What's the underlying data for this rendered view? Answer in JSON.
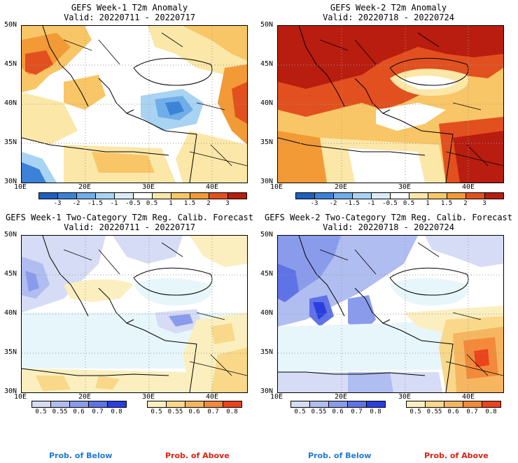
{
  "panels": [
    {
      "id": "w1-anom",
      "title": "GEFS Week-1 T2m Anomaly",
      "valid": "Valid: 20220711 - 20220717",
      "type": "anomaly",
      "lon_labels": [
        "10E",
        "20E",
        "30E",
        "40E"
      ],
      "lat_labels": [
        "50N",
        "45N",
        "40N",
        "35N",
        "30N"
      ]
    },
    {
      "id": "w2-anom",
      "title": "GEFS Week-2 T2m Anomaly",
      "valid": "Valid: 20220718 - 20220724",
      "type": "anomaly",
      "lon_labels": [
        "10E",
        "20E",
        "30E",
        "40E"
      ],
      "lat_labels": [
        "50N",
        "45N",
        "40N",
        "35N",
        "30N"
      ]
    },
    {
      "id": "w1-prob",
      "title": "GEFS Week-1 Two-Category T2m Reg. Calib. Forecast",
      "valid": "Valid: 20220711 - 20220717",
      "type": "prob",
      "lon_labels": [
        "10E",
        "20E",
        "30E",
        "40E"
      ],
      "lat_labels": [
        "50N",
        "45N",
        "40N",
        "35N",
        "30N"
      ]
    },
    {
      "id": "w2-prob",
      "title": "GEFS Week-2 Two-Category T2m Reg. Calib. Forecast",
      "valid": "Valid: 20220718 - 20220724",
      "type": "prob",
      "lon_labels": [
        "10E",
        "20E",
        "30E",
        "40E"
      ],
      "lat_labels": [
        "50N",
        "45N",
        "40N",
        "35N",
        "30N"
      ]
    }
  ],
  "anomaly_colorbar": {
    "labels": [
      "-3",
      "-2",
      "-1.5",
      "-1",
      "-0.5",
      "0.5",
      "1",
      "1.5",
      "2",
      "3"
    ],
    "colors": [
      "#1f5fbf",
      "#3b82d8",
      "#6faee8",
      "#a9d3f2",
      "#d9ecf8",
      "#ffffff",
      "#fbe7a8",
      "#f8c666",
      "#f29a36",
      "#e2501f",
      "#b81d0f"
    ]
  },
  "prob_colorbars": {
    "below": {
      "labels": [
        "0.5",
        "0.55",
        "0.6",
        "0.7",
        "0.8"
      ],
      "colors": [
        "#d6dcf5",
        "#b0bdf0",
        "#8a9beb",
        "#5f72e6",
        "#2a3ee0"
      ],
      "footer": "Prob. of Below",
      "footer_color": "#1e78d8"
    },
    "above": {
      "labels": [
        "0.5",
        "0.55",
        "0.6",
        "0.7",
        "0.8"
      ],
      "colors": [
        "#fbefc0",
        "#f9d88a",
        "#f6b660",
        "#f28a3a",
        "#e9441b"
      ],
      "footer": "Prob. of Above",
      "footer_color": "#e02010"
    }
  }
}
